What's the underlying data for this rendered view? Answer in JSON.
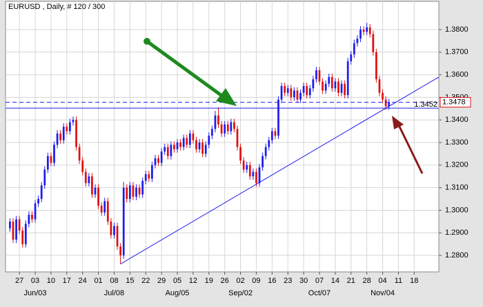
{
  "chart_data": {
    "type": "candlestick",
    "title": "EURUSD , Daily, # 120 / 300",
    "up_color": "#1c1cf0",
    "down_color": "#e01010",
    "grid": true,
    "xlim": [
      -1.4,
      135.8
    ],
    "ylim": [
      1.2727,
      1.3925
    ],
    "yticks": [
      {
        "value": 1.28,
        "label": "1.2800"
      },
      {
        "value": 1.29,
        "label": "1.2900"
      },
      {
        "value": 1.3,
        "label": "1.3000"
      },
      {
        "value": 1.31,
        "label": "1.3100"
      },
      {
        "value": 1.32,
        "label": "1.3200"
      },
      {
        "value": 1.33,
        "label": "1.3300"
      },
      {
        "value": 1.34,
        "label": "1.3400"
      },
      {
        "value": 1.35,
        "label": "1.3500"
      },
      {
        "value": 1.36,
        "label": "1.3600"
      },
      {
        "value": 1.37,
        "label": "1.3700"
      },
      {
        "value": 1.38,
        "label": "1.3800"
      }
    ],
    "xticks": [
      {
        "value": 3,
        "label": "27"
      },
      {
        "value": 8,
        "label": "03"
      },
      {
        "value": 13,
        "label": "10"
      },
      {
        "value": 18,
        "label": "17"
      },
      {
        "value": 23,
        "label": "24"
      },
      {
        "value": 28,
        "label": "01"
      },
      {
        "value": 33,
        "label": "08"
      },
      {
        "value": 38,
        "label": "15"
      },
      {
        "value": 43,
        "label": "22"
      },
      {
        "value": 48,
        "label": "29"
      },
      {
        "value": 53,
        "label": "05"
      },
      {
        "value": 58,
        "label": "12"
      },
      {
        "value": 63,
        "label": "19"
      },
      {
        "value": 68,
        "label": "26"
      },
      {
        "value": 73,
        "label": "02"
      },
      {
        "value": 78,
        "label": "09"
      },
      {
        "value": 83,
        "label": "16"
      },
      {
        "value": 88,
        "label": "23"
      },
      {
        "value": 93,
        "label": "30"
      },
      {
        "value": 98,
        "label": "07"
      },
      {
        "value": 103,
        "label": "14"
      },
      {
        "value": 108,
        "label": "21"
      },
      {
        "value": 113,
        "label": "28"
      },
      {
        "value": 118,
        "label": "04"
      },
      {
        "value": 123,
        "label": "11"
      },
      {
        "value": 128,
        "label": "18"
      }
    ],
    "month_labels": [
      {
        "value": 8,
        "label": "Jun/03"
      },
      {
        "value": 33,
        "label": "Jul/08"
      },
      {
        "value": 53,
        "label": "Aug/05"
      },
      {
        "value": 73,
        "label": "Sep/02"
      },
      {
        "value": 98,
        "label": "Oct/07"
      },
      {
        "value": 118,
        "label": "Nov/04"
      }
    ],
    "hlines": [
      {
        "value": 1.3478,
        "style": "dashed",
        "color": "#1c1cf0",
        "label_color": "#e01010"
      },
      {
        "value": 1.3452,
        "style": "solid",
        "color": "#1c1cf0",
        "label_color": "#1c1cf0"
      }
    ],
    "trendline": {
      "x": [
        35,
        135.8
      ],
      "y": [
        1.2762,
        1.359
      ],
      "color": "#1c1cf0"
    },
    "candles": [
      [
        1.292,
        1.2965,
        1.2905,
        1.295
      ],
      [
        1.295,
        1.2965,
        1.2855,
        1.287
      ],
      [
        1.287,
        1.2975,
        1.2855,
        1.296
      ],
      [
        1.296,
        1.2975,
        1.2895,
        1.291
      ],
      [
        1.291,
        1.2925,
        1.2835,
        1.285
      ],
      [
        1.285,
        1.2955,
        1.2835,
        1.294
      ],
      [
        1.294,
        1.2995,
        1.2925,
        1.298
      ],
      [
        1.298,
        1.2995,
        1.2945,
        1.296
      ],
      [
        1.296,
        1.3045,
        1.2945,
        1.303
      ],
      [
        1.303,
        1.3065,
        1.3015,
        1.305
      ],
      [
        1.305,
        1.3125,
        1.3035,
        1.311
      ],
      [
        1.311,
        1.3195,
        1.3095,
        1.318
      ],
      [
        1.318,
        1.3255,
        1.3165,
        1.324
      ],
      [
        1.324,
        1.3255,
        1.3195,
        1.321
      ],
      [
        1.321,
        1.3305,
        1.3195,
        1.329
      ],
      [
        1.329,
        1.3355,
        1.3275,
        1.334
      ],
      [
        1.334,
        1.3355,
        1.3295,
        1.331
      ],
      [
        1.331,
        1.3385,
        1.3295,
        1.337
      ],
      [
        1.337,
        1.3385,
        1.3335,
        1.335
      ],
      [
        1.335,
        1.3405,
        1.3335,
        1.339
      ],
      [
        1.339,
        1.3415,
        1.3375,
        1.34
      ],
      [
        1.34,
        1.3415,
        1.3265,
        1.328
      ],
      [
        1.328,
        1.3295,
        1.3205,
        1.322
      ],
      [
        1.322,
        1.3235,
        1.3155,
        1.317
      ],
      [
        1.317,
        1.3185,
        1.3105,
        1.312
      ],
      [
        1.312,
        1.3165,
        1.3105,
        1.315
      ],
      [
        1.315,
        1.3165,
        1.3055,
        1.307
      ],
      [
        1.307,
        1.3115,
        1.3055,
        1.31
      ],
      [
        1.31,
        1.3115,
        1.3005,
        1.302
      ],
      [
        1.302,
        1.3035,
        1.2975,
        1.299
      ],
      [
        1.299,
        1.3055,
        1.2975,
        1.304
      ],
      [
        1.304,
        1.3055,
        1.2935,
        1.295
      ],
      [
        1.295,
        1.2965,
        1.2875,
        1.289
      ],
      [
        1.289,
        1.2945,
        1.2875,
        1.293
      ],
      [
        1.293,
        1.2945,
        1.2825,
        1.284
      ],
      [
        1.284,
        1.2855,
        1.2762,
        1.28
      ],
      [
        1.28,
        1.3125,
        1.2785,
        1.31
      ],
      [
        1.31,
        1.3115,
        1.3035,
        1.305
      ],
      [
        1.305,
        1.3125,
        1.3035,
        1.311
      ],
      [
        1.311,
        1.3125,
        1.3045,
        1.306
      ],
      [
        1.306,
        1.3115,
        1.3045,
        1.31
      ],
      [
        1.31,
        1.3115,
        1.3055,
        1.307
      ],
      [
        1.307,
        1.3145,
        1.3055,
        1.313
      ],
      [
        1.313,
        1.3175,
        1.3115,
        1.316
      ],
      [
        1.316,
        1.3175,
        1.3125,
        1.314
      ],
      [
        1.314,
        1.3215,
        1.3125,
        1.32
      ],
      [
        1.32,
        1.3245,
        1.3185,
        1.323
      ],
      [
        1.323,
        1.3245,
        1.3195,
        1.321
      ],
      [
        1.321,
        1.3275,
        1.3195,
        1.326
      ],
      [
        1.326,
        1.3295,
        1.3245,
        1.328
      ],
      [
        1.328,
        1.3295,
        1.3225,
        1.324
      ],
      [
        1.324,
        1.3305,
        1.3225,
        1.329
      ],
      [
        1.329,
        1.3305,
        1.3255,
        1.327
      ],
      [
        1.327,
        1.3315,
        1.3255,
        1.33
      ],
      [
        1.33,
        1.3315,
        1.3265,
        1.328
      ],
      [
        1.328,
        1.3335,
        1.3265,
        1.332
      ],
      [
        1.332,
        1.3335,
        1.3275,
        1.329
      ],
      [
        1.329,
        1.3355,
        1.3275,
        1.334
      ],
      [
        1.334,
        1.3355,
        1.3295,
        1.331
      ],
      [
        1.331,
        1.3325,
        1.3255,
        1.327
      ],
      [
        1.327,
        1.3315,
        1.3255,
        1.33
      ],
      [
        1.33,
        1.3315,
        1.3235,
        1.325
      ],
      [
        1.325,
        1.3305,
        1.3235,
        1.329
      ],
      [
        1.329,
        1.3345,
        1.3275,
        1.333
      ],
      [
        1.333,
        1.3375,
        1.3315,
        1.336
      ],
      [
        1.336,
        1.344,
        1.3345,
        1.342
      ],
      [
        1.342,
        1.3455,
        1.3365,
        1.338
      ],
      [
        1.338,
        1.3395,
        1.3325,
        1.334
      ],
      [
        1.334,
        1.3395,
        1.3325,
        1.338
      ],
      [
        1.338,
        1.3395,
        1.3335,
        1.335
      ],
      [
        1.335,
        1.3405,
        1.3335,
        1.339
      ],
      [
        1.339,
        1.3405,
        1.3345,
        1.336
      ],
      [
        1.336,
        1.3375,
        1.3265,
        1.328
      ],
      [
        1.328,
        1.3295,
        1.3205,
        1.322
      ],
      [
        1.322,
        1.3235,
        1.3165,
        1.318
      ],
      [
        1.318,
        1.3215,
        1.3165,
        1.32
      ],
      [
        1.32,
        1.3215,
        1.3135,
        1.315
      ],
      [
        1.315,
        1.3185,
        1.3135,
        1.317
      ],
      [
        1.317,
        1.3185,
        1.3105,
        1.312
      ],
      [
        1.312,
        1.3205,
        1.3105,
        1.319
      ],
      [
        1.319,
        1.3255,
        1.3175,
        1.324
      ],
      [
        1.324,
        1.3295,
        1.3225,
        1.328
      ],
      [
        1.328,
        1.3325,
        1.3265,
        1.331
      ],
      [
        1.331,
        1.3365,
        1.3295,
        1.335
      ],
      [
        1.335,
        1.3365,
        1.3315,
        1.333
      ],
      [
        1.333,
        1.3505,
        1.3315,
        1.349
      ],
      [
        1.349,
        1.3565,
        1.3475,
        1.355
      ],
      [
        1.355,
        1.3565,
        1.3505,
        1.352
      ],
      [
        1.352,
        1.3555,
        1.3505,
        1.354
      ],
      [
        1.354,
        1.3555,
        1.3485,
        1.35
      ],
      [
        1.35,
        1.3545,
        1.3485,
        1.353
      ],
      [
        1.353,
        1.3545,
        1.3475,
        1.349
      ],
      [
        1.349,
        1.3535,
        1.3475,
        1.352
      ],
      [
        1.352,
        1.3565,
        1.3505,
        1.355
      ],
      [
        1.355,
        1.3565,
        1.3495,
        1.351
      ],
      [
        1.351,
        1.3555,
        1.3495,
        1.354
      ],
      [
        1.354,
        1.3595,
        1.3525,
        1.358
      ],
      [
        1.358,
        1.3635,
        1.3565,
        1.362
      ],
      [
        1.362,
        1.3635,
        1.3555,
        1.357
      ],
      [
        1.357,
        1.3585,
        1.3515,
        1.353
      ],
      [
        1.353,
        1.3575,
        1.3515,
        1.356
      ],
      [
        1.356,
        1.3605,
        1.3545,
        1.359
      ],
      [
        1.359,
        1.3605,
        1.3525,
        1.354
      ],
      [
        1.354,
        1.3585,
        1.3525,
        1.357
      ],
      [
        1.357,
        1.3585,
        1.3505,
        1.352
      ],
      [
        1.352,
        1.3575,
        1.3505,
        1.356
      ],
      [
        1.356,
        1.3575,
        1.3495,
        1.351
      ],
      [
        1.351,
        1.3675,
        1.3495,
        1.366
      ],
      [
        1.366,
        1.3705,
        1.3645,
        1.369
      ],
      [
        1.369,
        1.3755,
        1.3675,
        1.374
      ],
      [
        1.374,
        1.3775,
        1.3725,
        1.376
      ],
      [
        1.376,
        1.3815,
        1.3745,
        1.38
      ],
      [
        1.38,
        1.3815,
        1.3775,
        1.379
      ],
      [
        1.379,
        1.383,
        1.3775,
        1.381
      ],
      [
        1.381,
        1.3825,
        1.3765,
        1.378
      ],
      [
        1.378,
        1.3795,
        1.3685,
        1.37
      ],
      [
        1.37,
        1.3715,
        1.3565,
        1.358
      ],
      [
        1.358,
        1.3595,
        1.3505,
        1.352
      ],
      [
        1.352,
        1.3535,
        1.3475,
        1.349
      ],
      [
        1.349,
        1.3505,
        1.3445,
        1.346
      ],
      [
        1.346,
        1.3493,
        1.3445,
        1.3478
      ]
    ]
  }
}
